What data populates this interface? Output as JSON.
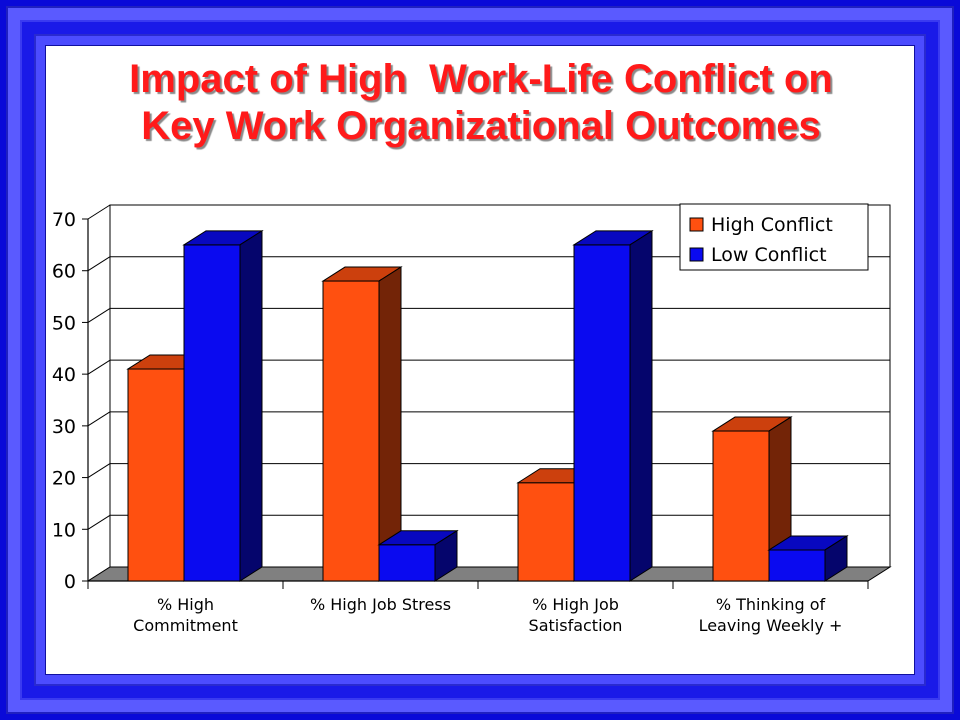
{
  "slide": {
    "title_line1": "Impact of High  Work-Life Conflict on",
    "title_line2": "Key Work Organizational Outcomes"
  },
  "chart_data": {
    "type": "bar",
    "style": "3d-clustered",
    "categories": [
      [
        "% High",
        "Commitment"
      ],
      [
        "% High Job Stress"
      ],
      [
        "% High Job",
        "Satisfaction"
      ],
      [
        "% Thinking of",
        "Leaving Weekly +"
      ]
    ],
    "series": [
      {
        "name": "High Conflict",
        "color": "#ff5010",
        "values": [
          41,
          58,
          19,
          29
        ]
      },
      {
        "name": "Low Conflict",
        "color": "#0a0af0",
        "values": [
          65,
          7,
          65,
          6
        ]
      }
    ],
    "ylim": [
      0,
      70
    ],
    "yticks": [
      0,
      10,
      20,
      30,
      40,
      50,
      60,
      70
    ],
    "grid": true,
    "legend": "top-right"
  }
}
